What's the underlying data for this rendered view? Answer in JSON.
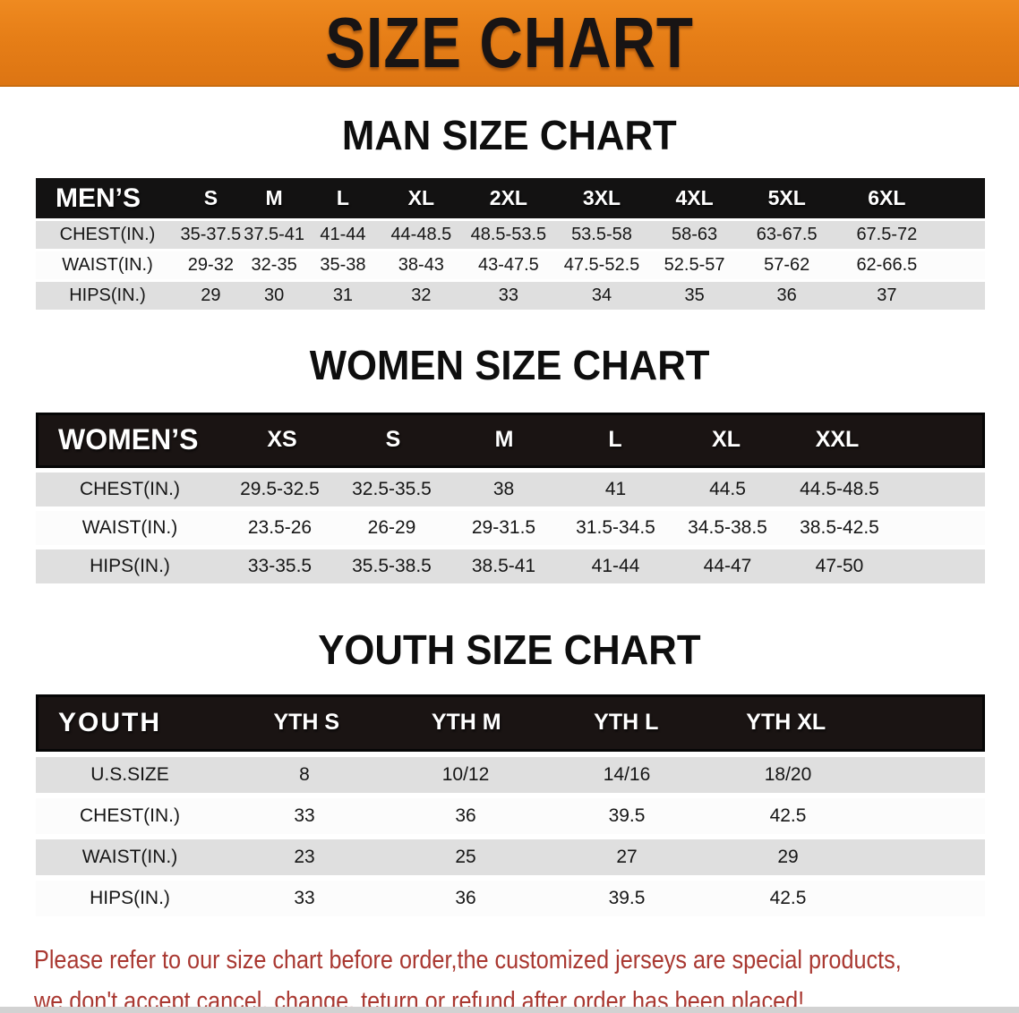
{
  "banner": {
    "title": "SIZE CHART"
  },
  "colors": {
    "banner_orange": "#e67e17",
    "header_black": "#1a1413",
    "row_gray": "#dfdfdf",
    "row_white": "#fcfcfc",
    "footer_red": "#a93831"
  },
  "sections": [
    {
      "heading": "MAN SIZE CHART",
      "table": {
        "corner_label": "MEN’S",
        "columns": [
          "S",
          "M",
          "L",
          "XL",
          "2XL",
          "3XL",
          "4XL",
          "5XL",
          "6XL"
        ],
        "rows": [
          {
            "label": "CHEST(IN.)",
            "values": [
              "35-37.5",
              "37.5-41",
              "41-44",
              "44-48.5",
              "48.5-53.5",
              "53.5-58",
              "58-63",
              "63-67.5",
              "67.5-72"
            ]
          },
          {
            "label": "WAIST(IN.)",
            "values": [
              "29-32",
              "32-35",
              "35-38",
              "38-43",
              "43-47.5",
              "47.5-52.5",
              "52.5-57",
              "57-62",
              "62-66.5"
            ]
          },
          {
            "label": "HIPS(IN.)",
            "values": [
              "29",
              "30",
              "31",
              "32",
              "33",
              "34",
              "35",
              "36",
              "37"
            ]
          }
        ]
      }
    },
    {
      "heading": "WOMEN SIZE CHART",
      "table": {
        "corner_label": "WOMEN’S",
        "columns": [
          "XS",
          "S",
          "M",
          "L",
          "XL",
          "XXL"
        ],
        "rows": [
          {
            "label": "CHEST(IN.)",
            "values": [
              "29.5-32.5",
              "32.5-35.5",
              "38",
              "41",
              "44.5",
              "44.5-48.5"
            ]
          },
          {
            "label": "WAIST(IN.)",
            "values": [
              "23.5-26",
              "26-29",
              "29-31.5",
              "31.5-34.5",
              "34.5-38.5",
              "38.5-42.5"
            ]
          },
          {
            "label": "HIPS(IN.)",
            "values": [
              "33-35.5",
              "35.5-38.5",
              "38.5-41",
              "41-44",
              "44-47",
              "47-50"
            ]
          }
        ]
      }
    },
    {
      "heading": "YOUTH SIZE CHART",
      "table": {
        "corner_label": "YOUTH",
        "columns": [
          "YTH S",
          "YTH M",
          "YTH L",
          "YTH XL"
        ],
        "rows": [
          {
            "label": "U.S.SIZE",
            "values": [
              "8",
              "10/12",
              "14/16",
              "18/20"
            ]
          },
          {
            "label": "CHEST(IN.)",
            "values": [
              "33",
              "36",
              "39.5",
              "42.5"
            ]
          },
          {
            "label": "WAIST(IN.)",
            "values": [
              "23",
              "25",
              "27",
              "29"
            ]
          },
          {
            "label": "HIPS(IN.)",
            "values": [
              "33",
              "36",
              "39.5",
              "42.5"
            ]
          }
        ]
      }
    }
  ],
  "footer": {
    "line1": "Please refer to our size chart before order,the customized jerseys are special products,",
    "line2": "we don't accept cancel, change, teturn or refund after order has been placed!"
  }
}
